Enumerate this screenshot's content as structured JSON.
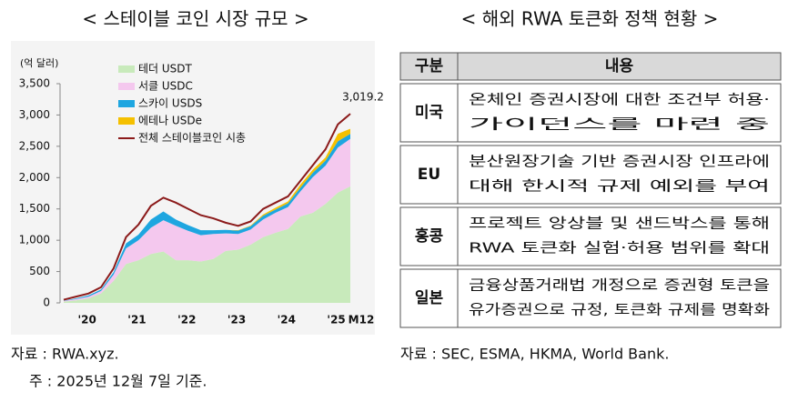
{
  "left_title": "< 스테이블 코인 시장 규모 >",
  "chart_data": {
    "type": "area",
    "stacked": true,
    "ylabel": "(억 달러)",
    "categories": [
      null,
      "'20",
      null,
      null,
      null,
      "'21",
      null,
      null,
      null,
      "'22",
      null,
      null,
      null,
      "'23",
      null,
      null,
      null,
      "'24",
      null,
      null,
      null,
      "'25",
      null,
      "M12"
    ],
    "ylim": [
      0,
      3500
    ],
    "yticks": [
      0,
      500,
      {
        "value": 1000,
        "label": "1,000"
      },
      {
        "value": 1500,
        "label": "1,500"
      },
      {
        "value": 2000,
        "label": "2,000"
      },
      {
        "value": 2500,
        "label": "2,500"
      },
      {
        "value": 3000,
        "label": "3,000"
      },
      {
        "value": 3500,
        "label": "3,500"
      }
    ],
    "series": [
      {
        "name": "테더 USDT",
        "color": "#c8eabb",
        "values": [
          20,
          40,
          70,
          150,
          350,
          620,
          680,
          780,
          820,
          680,
          680,
          660,
          700,
          830,
          850,
          930,
          1050,
          1120,
          1180,
          1380,
          1440,
          1580,
          1760,
          1860
        ]
      },
      {
        "name": "서클 USDC",
        "color": "#f4c8ee",
        "values": [
          10,
          20,
          30,
          40,
          100,
          250,
          320,
          420,
          500,
          550,
          470,
          420,
          400,
          280,
          250,
          240,
          280,
          320,
          350,
          400,
          570,
          610,
          720,
          760
        ]
      },
      {
        "name": "스카이 USDS",
        "color": "#1ea6e0",
        "values": [
          5,
          10,
          20,
          25,
          40,
          80,
          90,
          130,
          140,
          100,
          90,
          80,
          60,
          55,
          55,
          55,
          60,
          50,
          60,
          60,
          70,
          80,
          100,
          80
        ]
      },
      {
        "name": "에테나 USDe",
        "color": "#f5c000",
        "values": [
          0,
          0,
          0,
          0,
          0,
          0,
          0,
          0,
          0,
          0,
          0,
          0,
          0,
          0,
          5,
          10,
          20,
          30,
          30,
          50,
          50,
          50,
          120,
          80
        ]
      },
      {
        "name": "전체 스테이블코인 시총",
        "color": "#8b1a1a",
        "type": "line",
        "values": [
          50,
          100,
          150,
          250,
          550,
          1050,
          1250,
          1550,
          1680,
          1600,
          1500,
          1400,
          1350,
          1280,
          1230,
          1300,
          1500,
          1600,
          1700,
          1950,
          2200,
          2450,
          2850,
          3019.2
        ],
        "value_labels": [
          null,
          null,
          null,
          null,
          null,
          null,
          null,
          null,
          null,
          null,
          null,
          null,
          null,
          null,
          null,
          null,
          null,
          null,
          null,
          null,
          null,
          null,
          null,
          "3,019.2"
        ]
      }
    ]
  },
  "left_sources": [
    "자료 : RWA.xyz.",
    "주 : 2025년 12월 7일 기준."
  ],
  "right_title": "< 해외 RWA 토큰화 정책 현황 >",
  "table": {
    "header": [
      "구분",
      "내용"
    ],
    "rows": [
      {
        "label": "미국",
        "lines": [
          "온체인 증권시장에 대한 조건부 허용·",
          "가이던스를 마련 중"
        ]
      },
      {
        "label": "EU",
        "lines": [
          "분산원장기술 기반 증권시장 인프라에",
          "대해 한시적 규제 예외를 부여"
        ]
      },
      {
        "label": "홍콩",
        "lines": [
          "프로젝트 앙상블 및 샌드박스를 통해",
          "RWA 토큰화 실험·허용 범위를 확대"
        ]
      },
      {
        "label": "일본",
        "lines": [
          "금융상품거래법 개정으로 증권형 토큰을",
          "유가증권으로 규정, 토큰화 규제를 명확화"
        ]
      }
    ]
  },
  "right_source": "자료 : SEC, ESMA, HKMA, World Bank."
}
